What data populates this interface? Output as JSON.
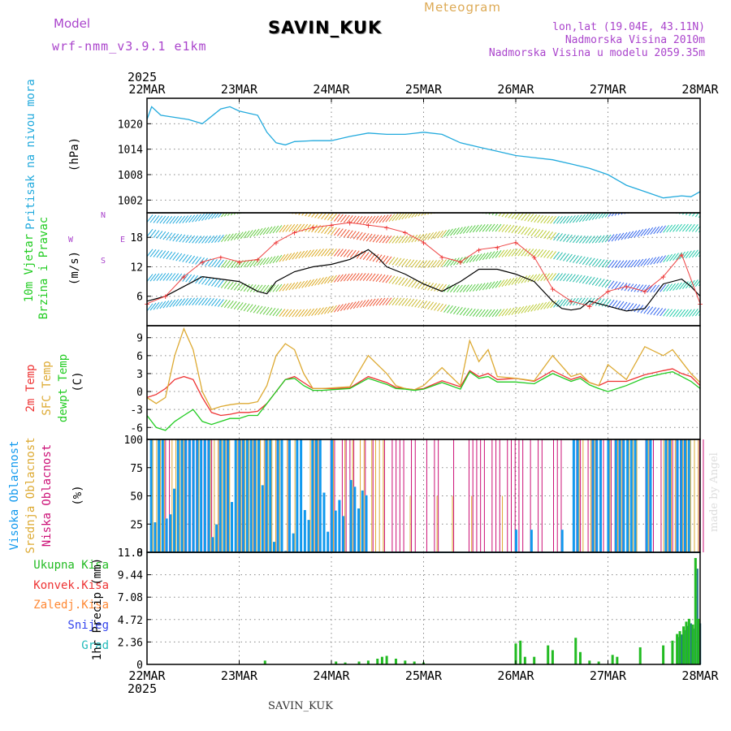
{
  "header": {
    "model_label": "Model",
    "model_name": "wrf-nmm_v3.9.1 e1km",
    "station": "SAVIN_KUK",
    "meteogram_label": "Meteogram",
    "lonlat": "lon,lat (19.04E, 43.11N)",
    "elevation": "Nadmorska Visina 2010m",
    "model_elevation": "Nadmorska Visina u modelu 2059.35m",
    "year_top": "2025",
    "year_bottom": "2025",
    "footer_station": "SAVIN_KUK",
    "watermark": "made by Angel"
  },
  "colors": {
    "pressure": "#22aadd",
    "temp2m": "#ee3333",
    "sfc_temp": "#ddaa33",
    "dewpt": "#22cc22",
    "high_cloud": "#1199ee",
    "mid_cloud": "#ddaa33",
    "low_cloud": "#cc1177",
    "precip_total": "#22bb22",
    "precip_conv": "#ee3333",
    "precip_frozen": "#ff8833",
    "snow": "#3344ee",
    "hail": "#22bbbb",
    "header_purple": "#aa44cc",
    "meteogram_gold": "#ddaa55"
  },
  "chart_data": [
    {
      "type": "line",
      "name": "pressure",
      "labels": [
        "Pritisak na nivou mora"
      ],
      "ylabel": "(hPa)",
      "ylim": [
        999,
        1026
      ],
      "yticks": [
        1002,
        1008,
        1014,
        1020
      ],
      "x_ticks": [
        "22MAR",
        "23MAR",
        "24MAR",
        "25MAR",
        "26MAR",
        "27MAR",
        "28MAR"
      ],
      "grid": true,
      "series": [
        {
          "name": "Pritisak na nivou mora",
          "x": [
            0,
            0.05,
            0.15,
            0.3,
            0.45,
            0.6,
            0.8,
            0.9,
            1.0,
            1.2,
            1.3,
            1.4,
            1.5,
            1.6,
            1.8,
            2.0,
            2.2,
            2.4,
            2.6,
            2.8,
            3.0,
            3.2,
            3.4,
            3.6,
            3.8,
            4.0,
            4.2,
            4.4,
            4.6,
            4.8,
            5.0,
            5.2,
            5.4,
            5.6,
            5.8,
            5.9,
            6.0
          ],
          "y": [
            1021,
            1024,
            1022,
            1021.5,
            1021,
            1020,
            1023.5,
            1024,
            1023,
            1022,
            1018,
            1015.5,
            1015,
            1015.8,
            1016,
            1016,
            1017,
            1017.8,
            1017.5,
            1017.5,
            1018,
            1017.5,
            1015.5,
            1014.5,
            1013.5,
            1012.5,
            1012,
            1011.5,
            1010.5,
            1009.5,
            1008,
            1005.5,
            1004,
            1002.5,
            1003,
            1002.8,
            1004
          ]
        }
      ]
    },
    {
      "type": "line",
      "name": "wind",
      "labels": [
        "10m Vjetar",
        "Brzina i Pravac"
      ],
      "ylabel": "(m/s)",
      "ylim": [
        0,
        23
      ],
      "yticks": [
        6,
        12,
        18
      ],
      "direction_legend": [
        "W",
        "E",
        "N",
        "S"
      ],
      "grid": true,
      "series": [
        {
          "name": "speed",
          "x": [
            0,
            0.2,
            0.4,
            0.6,
            0.8,
            1.0,
            1.1,
            1.2,
            1.3,
            1.4,
            1.6,
            1.8,
            2.0,
            2.2,
            2.4,
            2.5,
            2.6,
            2.8,
            3.0,
            3.2,
            3.4,
            3.6,
            3.8,
            4.0,
            4.2,
            4.4,
            4.5,
            4.6,
            4.7,
            4.8,
            5.0,
            5.2,
            5.4,
            5.6,
            5.8,
            5.9,
            6.0
          ],
          "y": [
            5,
            6,
            8,
            10,
            9.5,
            9,
            8,
            7,
            6.5,
            9,
            11,
            12,
            12.5,
            13.5,
            15.5,
            14,
            12,
            10.5,
            8.5,
            7,
            9,
            11.5,
            11.5,
            10.5,
            9,
            5,
            3.5,
            3.2,
            3.5,
            5,
            4,
            3,
            3.5,
            8.5,
            9.5,
            8,
            6
          ]
        },
        {
          "name": "gust",
          "x": [
            0,
            0.2,
            0.4,
            0.6,
            0.8,
            1.0,
            1.2,
            1.4,
            1.6,
            1.8,
            2.0,
            2.2,
            2.4,
            2.6,
            2.8,
            3.0,
            3.2,
            3.4,
            3.6,
            3.8,
            4.0,
            4.2,
            4.4,
            4.6,
            4.8,
            5.0,
            5.2,
            5.4,
            5.6,
            5.8,
            6.0
          ],
          "y": [
            4.5,
            6,
            10,
            13,
            14,
            13,
            13.5,
            17,
            19,
            20,
            20.5,
            21,
            20.5,
            20,
            19,
            17,
            14,
            13,
            15.5,
            16,
            17,
            14,
            7.5,
            5,
            4,
            7,
            8,
            7,
            10,
            14.5,
            4.5
          ]
        }
      ]
    },
    {
      "type": "line",
      "name": "temperature",
      "labels": [
        "2m Temp",
        "SFC Temp",
        "dewpt Temp"
      ],
      "ylabel": "(C)",
      "ylim": [
        -8,
        11
      ],
      "yticks": [
        -6,
        -3,
        0,
        3,
        6,
        9
      ],
      "grid": true,
      "series": [
        {
          "name": "2m Temp",
          "x": [
            0,
            0.1,
            0.2,
            0.3,
            0.4,
            0.5,
            0.6,
            0.7,
            0.8,
            0.9,
            1.0,
            1.1,
            1.2,
            1.3,
            1.4,
            1.5,
            1.6,
            1.7,
            1.8,
            1.9,
            2.0,
            2.2,
            2.4,
            2.6,
            2.7,
            2.8,
            2.9,
            3.0,
            3.2,
            3.4,
            3.5,
            3.6,
            3.7,
            3.8,
            4.0,
            4.2,
            4.4,
            4.6,
            4.7,
            4.8,
            4.9,
            5.0,
            5.2,
            5.4,
            5.6,
            5.7,
            5.8,
            5.9,
            6.0
          ],
          "y": [
            -1,
            -0.5,
            0.5,
            2,
            2.5,
            2,
            -1,
            -3.5,
            -4,
            -3.8,
            -3.5,
            -3.5,
            -3.3,
            -2,
            0,
            2,
            2.5,
            1.5,
            0.5,
            0.5,
            0.5,
            0.6,
            2.5,
            1.5,
            0.7,
            0.5,
            0.3,
            0.5,
            1.8,
            0.8,
            3.5,
            2.5,
            3,
            2,
            2.2,
            1.7,
            3.5,
            2,
            2.5,
            1.5,
            1,
            1.7,
            1.7,
            2.8,
            3.5,
            3.8,
            3,
            2.5,
            1
          ]
        },
        {
          "name": "SFC Temp",
          "x": [
            0,
            0.1,
            0.2,
            0.3,
            0.4,
            0.5,
            0.6,
            0.7,
            0.8,
            0.9,
            1.0,
            1.1,
            1.2,
            1.3,
            1.4,
            1.5,
            1.6,
            1.7,
            1.8,
            1.9,
            2.0,
            2.2,
            2.4,
            2.6,
            2.7,
            2.8,
            2.9,
            3.0,
            3.2,
            3.4,
            3.5,
            3.6,
            3.7,
            3.8,
            4.0,
            4.2,
            4.4,
            4.6,
            4.7,
            4.8,
            4.9,
            5.0,
            5.2,
            5.4,
            5.6,
            5.7,
            5.8,
            5.9,
            6.0
          ],
          "y": [
            -1,
            -2,
            -1,
            6,
            10.5,
            7,
            0,
            -3,
            -2.5,
            -2.2,
            -2,
            -2,
            -1.7,
            1,
            6,
            8,
            7,
            3,
            0.5,
            0.5,
            0.6,
            0.8,
            6,
            3,
            1,
            0.5,
            0.3,
            1,
            4,
            1,
            8.5,
            5,
            7,
            2.5,
            2.2,
            1.8,
            6,
            2.5,
            3,
            1.5,
            1,
            4.5,
            2,
            7.5,
            6,
            7,
            5,
            3,
            1.5
          ]
        },
        {
          "name": "dewpt Temp",
          "x": [
            0,
            0.1,
            0.2,
            0.3,
            0.4,
            0.5,
            0.6,
            0.7,
            0.8,
            0.9,
            1.0,
            1.1,
            1.2,
            1.3,
            1.4,
            1.5,
            1.6,
            1.7,
            1.8,
            1.9,
            2.0,
            2.2,
            2.4,
            2.6,
            2.7,
            2.8,
            2.9,
            3.0,
            3.2,
            3.4,
            3.5,
            3.6,
            3.7,
            3.8,
            4.0,
            4.2,
            4.4,
            4.6,
            4.7,
            4.8,
            4.9,
            5.0,
            5.2,
            5.4,
            5.6,
            5.7,
            5.8,
            5.9,
            6.0
          ],
          "y": [
            -4,
            -6,
            -6.5,
            -5,
            -4,
            -3,
            -5,
            -5.5,
            -5,
            -4.5,
            -4.5,
            -4,
            -4,
            -2,
            0,
            2,
            2.2,
            1,
            0.2,
            0.2,
            0.3,
            0.5,
            2.2,
            1.2,
            0.5,
            0.4,
            0.2,
            0.4,
            1.5,
            0.4,
            3.3,
            2.2,
            2.5,
            1.6,
            1.6,
            1.3,
            3,
            1.7,
            2.2,
            1.1,
            0.5,
            0,
            1,
            2.3,
            3,
            3.3,
            2.5,
            1.7,
            0.5
          ]
        }
      ]
    },
    {
      "type": "bar",
      "name": "cloud",
      "labels": [
        "Visoka Oblacnost",
        "Srednja Oblacnost",
        "Niska Oblacnost"
      ],
      "ylabel": "(%)",
      "ylim": [
        0,
        100
      ],
      "yticks": [
        0,
        25,
        50,
        75,
        100
      ],
      "grid": true,
      "note": "hourly cloud cover percentages"
    },
    {
      "type": "bar",
      "name": "precip",
      "labels": [
        "Ukupna Kisa",
        "Konvek.Kisa",
        "Zaledj.Kisa",
        "Snijeg",
        "Grad"
      ],
      "ylabel": "1hr Precip (mm)",
      "ylim": [
        0,
        11.8
      ],
      "yticks": [
        0,
        2.36,
        4.72,
        7.08,
        9.44,
        11.8
      ],
      "ytick_labels": [
        "0",
        "2.36",
        "4.72",
        "7.08",
        "9.44",
        "11.8"
      ],
      "grid": true,
      "x": [
        1.28,
        2.05,
        2.15,
        2.3,
        2.4,
        2.5,
        2.55,
        2.6,
        2.7,
        2.8,
        2.9,
        3.0,
        4.0,
        4.05,
        4.1,
        4.2,
        4.35,
        4.4,
        4.65,
        4.7,
        4.8,
        4.9,
        5.05,
        5.1,
        5.35,
        5.6,
        5.7,
        5.75,
        5.78,
        5.82,
        5.85,
        5.88,
        5.92,
        5.95,
        5.98
      ],
      "values": [
        0.4,
        0.3,
        0.2,
        0.3,
        0.4,
        0.6,
        0.8,
        0.9,
        0.6,
        0.4,
        0.3,
        0.2,
        2.2,
        2.5,
        0.8,
        0.8,
        2.0,
        1.5,
        2.8,
        1.3,
        0.4,
        0.3,
        1.0,
        0.8,
        1.8,
        2.0,
        2.5,
        3.2,
        3.5,
        4.0,
        4.5,
        4.8,
        4.2,
        11.2,
        4.8
      ]
    }
  ]
}
